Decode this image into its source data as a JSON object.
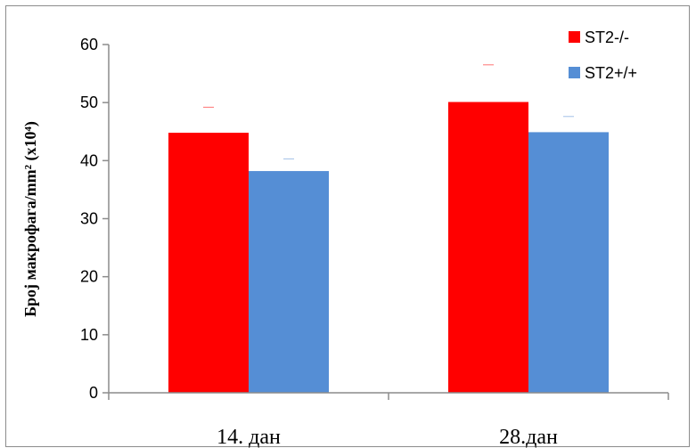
{
  "chart_data": {
    "type": "bar",
    "categories": [
      "14. дан",
      "28.дан"
    ],
    "series": [
      {
        "name": "ST2-/-",
        "values": [
          44.8,
          50.1
        ],
        "error": [
          4.4,
          6.4
        ],
        "color": "#ff0000"
      },
      {
        "name": "ST2+/+",
        "values": [
          38.2,
          44.9
        ],
        "error": [
          2.1,
          2.7
        ],
        "color": "#558ed5"
      }
    ],
    "title": "",
    "xlabel": "",
    "ylabel": "Број макрофага/mm² (x10⁴)",
    "ylim": [
      0,
      60
    ],
    "yticks": [
      0,
      10,
      20,
      30,
      40,
      50,
      60
    ],
    "grid": false,
    "legend_position": "top-right"
  }
}
